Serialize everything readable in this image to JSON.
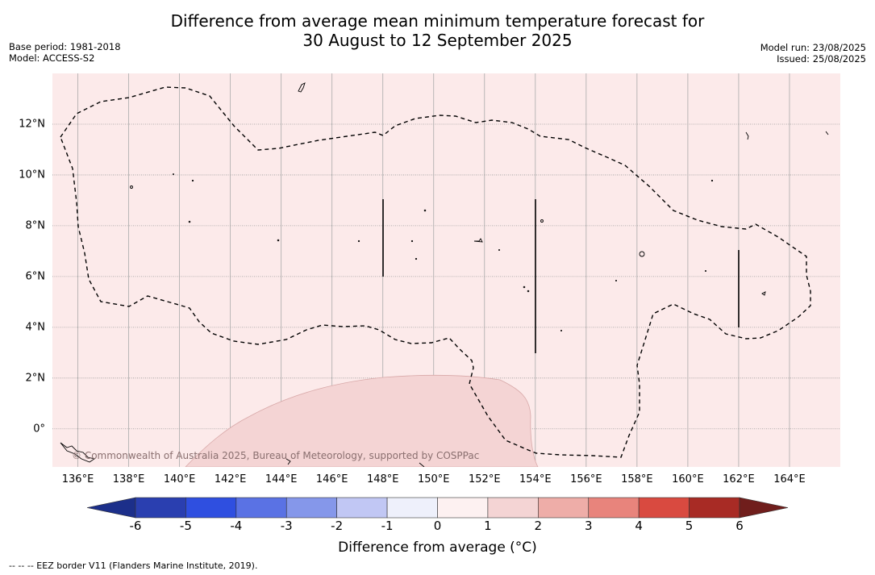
{
  "title_line1": "Difference from average mean minimum temperature forecast for",
  "title_line2": "30 August to 12 September 2025",
  "base_period": "Base period: 1981-2018",
  "model": "Model: ACCESS-S2",
  "model_run": "Model run: 23/08/2025",
  "issued": "Issued: 25/08/2025",
  "x_ticks": [
    "136°E",
    "138°E",
    "140°E",
    "142°E",
    "144°E",
    "146°E",
    "148°E",
    "150°E",
    "152°E",
    "154°E",
    "156°E",
    "158°E",
    "160°E",
    "162°E",
    "164°E"
  ],
  "x_tick_values": [
    136,
    138,
    140,
    142,
    144,
    146,
    148,
    150,
    152,
    154,
    156,
    158,
    160,
    162,
    164
  ],
  "y_ticks": [
    "12°N",
    "10°N",
    "8°N",
    "6°N",
    "4°N",
    "2°N",
    "0°"
  ],
  "y_tick_values": [
    12,
    10,
    8,
    6,
    4,
    2,
    0
  ],
  "lon_range": [
    135.0,
    166.0
  ],
  "lat_range": [
    -1.5,
    14.0
  ],
  "copyright": "© Commonwealth of Australia 2025, Bureau of Meteorology, supported by COSPPac",
  "colorbar": {
    "labels": [
      "-6",
      "-5",
      "-4",
      "-3",
      "-2",
      "-1",
      "0",
      "1",
      "2",
      "3",
      "4",
      "5",
      "6"
    ],
    "colors": [
      "#1c2f8a",
      "#2a3fb0",
      "#2f4fe0",
      "#5a72e4",
      "#8597ea",
      "#c1c7f4",
      "#eef0fb",
      "#fdf1f1",
      "#f4d4d4",
      "#eeada8",
      "#e8847c",
      "#d94a40",
      "#a82b25",
      "#701e1c"
    ],
    "title": "Difference from average (°C)"
  },
  "footnote": "--  --  -- EEZ border V11 (Flanders Marine Institute, 2019).",
  "colors": {
    "background": "#fceaea",
    "warm_zone": "#f4d4d4",
    "grid": "#999999"
  }
}
